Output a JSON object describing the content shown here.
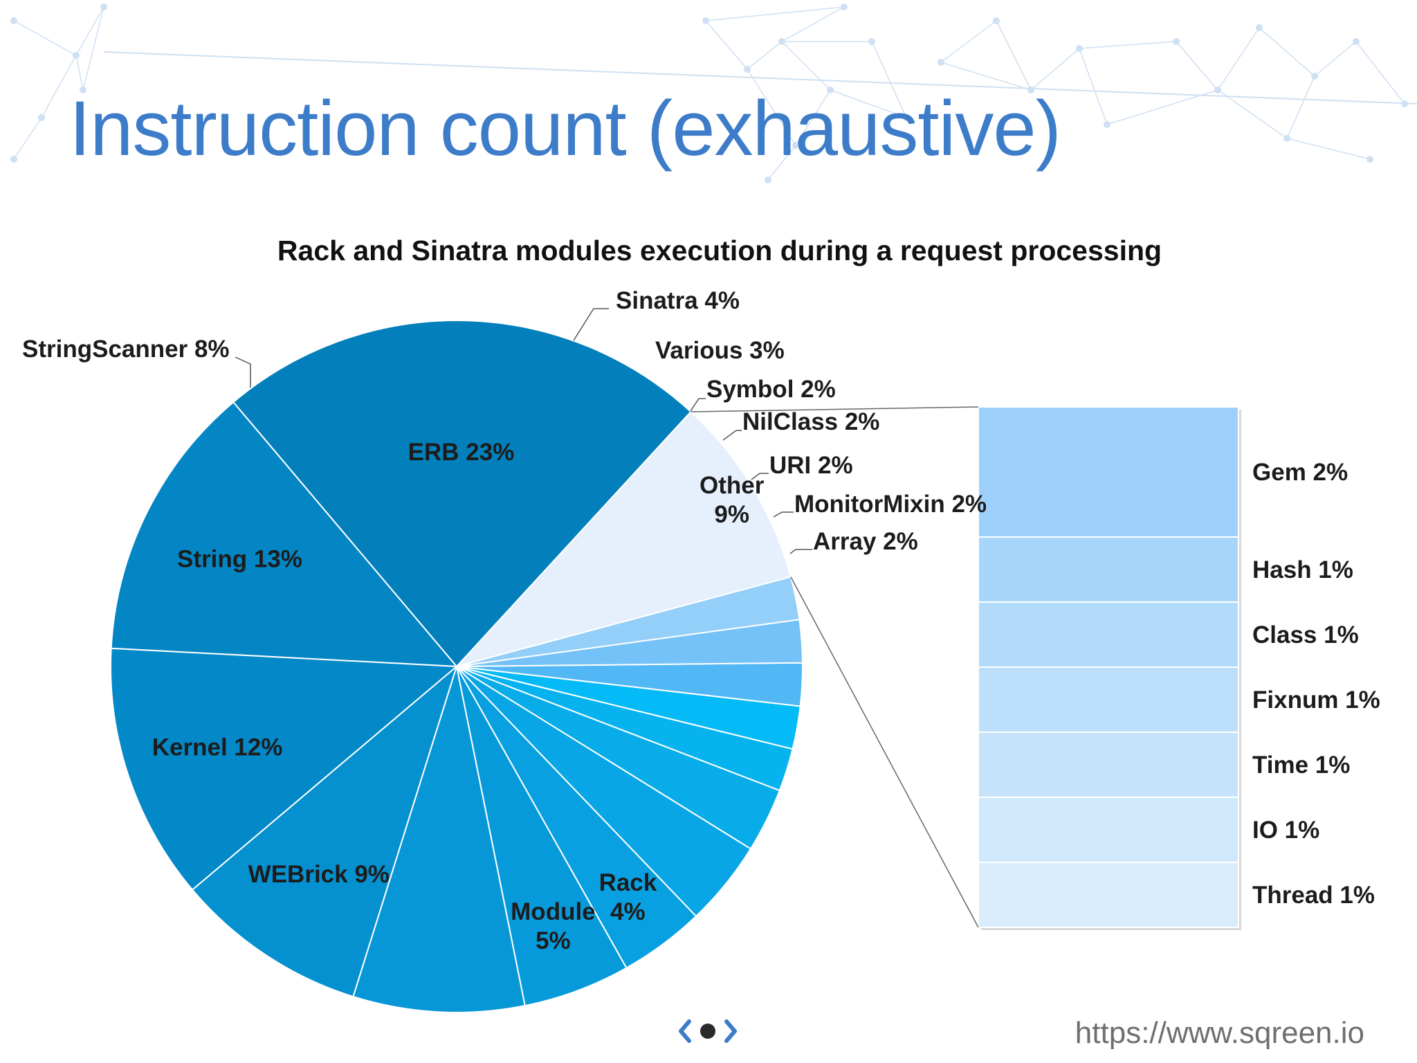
{
  "slide": {
    "title": "Instruction count (exhaustive)",
    "footer_url": "https://www.sqreen.io",
    "logo_icon": "sqreen-logo-icon"
  },
  "colors": {
    "title": "#3d7cc9",
    "background_network": "#cfe0f2"
  },
  "chart_data": {
    "type": "pie",
    "title": "Rack and Sinatra modules execution during a request processing",
    "slices": [
      {
        "label": "Other",
        "value": 9,
        "display": [
          "Other",
          "9%"
        ],
        "color": "#e6f0fc"
      },
      {
        "label": "ERB",
        "value": 23,
        "display": [
          "ERB 23%"
        ],
        "color": "#0380bb"
      },
      {
        "label": "String",
        "value": 13,
        "display": [
          "String 13%"
        ],
        "color": "#0486c4"
      },
      {
        "label": "Kernel",
        "value": 12,
        "display": [
          "Kernel 12%"
        ],
        "color": "#0388c8"
      },
      {
        "label": "WEBrick",
        "value": 9,
        "display": [
          "WEBrick 9%"
        ],
        "color": "#0590cf"
      },
      {
        "label": "StringScanner",
        "value": 8,
        "display": [
          "StringScanner 8%"
        ],
        "color": "#0796d6"
      },
      {
        "label": "Module",
        "value": 5,
        "display": [
          "Module",
          "5%"
        ],
        "color": "#079ada"
      },
      {
        "label": "Rack",
        "value": 4,
        "display": [
          "Rack",
          "4%"
        ],
        "color": "#08a0e0"
      },
      {
        "label": "Sinatra",
        "value": 4,
        "display": [
          "Sinatra 4%"
        ],
        "color": "#08a6e6"
      },
      {
        "label": "Various",
        "value": 3,
        "display": [
          "Various 3%"
        ],
        "color": "#08ace9"
      },
      {
        "label": "Symbol",
        "value": 2,
        "display": [
          "Symbol 2%"
        ],
        "color": "#06b3ef"
      },
      {
        "label": "NilClass",
        "value": 2,
        "display": [
          "NilClass 2%"
        ],
        "color": "#05bbf7"
      },
      {
        "label": "URI",
        "value": 2,
        "display": [
          "URI 2%"
        ],
        "color": "#52b7f5"
      },
      {
        "label": "MonitorMixin",
        "value": 2,
        "display": [
          "MonitorMixin 2%"
        ],
        "color": "#74c2f7"
      },
      {
        "label": "Array",
        "value": 2,
        "display": [
          "Array 2%"
        ],
        "color": "#93cff8"
      }
    ],
    "breakdown_of": "Other",
    "breakdown": [
      {
        "label": "Gem",
        "value": 2,
        "display": "Gem 2%",
        "color": "#9dd1fb"
      },
      {
        "label": "Hash",
        "value": 1,
        "display": "Hash 1%",
        "color": "#a8d6fb"
      },
      {
        "label": "Class",
        "value": 1,
        "display": "Class 1%",
        "color": "#b1dafb"
      },
      {
        "label": "Fixnum",
        "value": 1,
        "display": "Fixnum 1%",
        "color": "#bcdffb"
      },
      {
        "label": "Time",
        "value": 1,
        "display": "Time 1%",
        "color": "#c6e3fb"
      },
      {
        "label": "IO",
        "value": 1,
        "display": "IO 1%",
        "color": "#d0e8fc"
      },
      {
        "label": "Thread",
        "value": 1,
        "display": "Thread 1%",
        "color": "#d9ecfc"
      }
    ]
  }
}
